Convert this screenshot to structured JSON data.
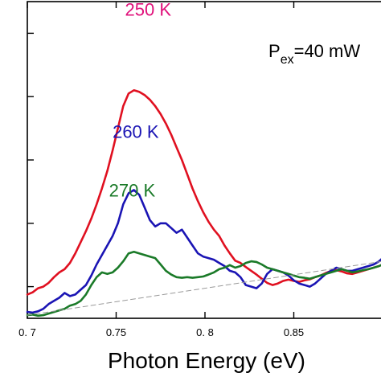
{
  "chart_data": {
    "type": "line",
    "xlabel": "Photon Energy (eV)",
    "xlim": [
      0.7,
      0.9
    ],
    "ylim": [
      0,
      1
    ],
    "xticks": [
      {
        "value": 0.7,
        "label": "0. 7"
      },
      {
        "value": 0.75,
        "label": "0.75"
      },
      {
        "value": 0.8,
        "label": "0. 8"
      },
      {
        "value": 0.85,
        "label": "0.85"
      }
    ],
    "yticks": [
      0.1,
      0.3,
      0.5,
      0.7,
      0.9
    ],
    "annotation": {
      "text_main": "P",
      "text_sub": "ex",
      "text_rest": "=40 mW"
    },
    "series": [
      {
        "name": "250 K",
        "color": "#e01020",
        "label_color": "#e0107a",
        "label_pos": [
          0.755,
          0.955
        ],
        "x": [
          0.7,
          0.703,
          0.706,
          0.709,
          0.712,
          0.715,
          0.718,
          0.721,
          0.724,
          0.727,
          0.73,
          0.733,
          0.736,
          0.739,
          0.742,
          0.745,
          0.748,
          0.751,
          0.754,
          0.757,
          0.76,
          0.763,
          0.766,
          0.769,
          0.772,
          0.775,
          0.778,
          0.781,
          0.784,
          0.787,
          0.79,
          0.793,
          0.796,
          0.799,
          0.802,
          0.805,
          0.808,
          0.811,
          0.814,
          0.817,
          0.82,
          0.823,
          0.826,
          0.829,
          0.832,
          0.835,
          0.838,
          0.841,
          0.844,
          0.847,
          0.85,
          0.853,
          0.856,
          0.859,
          0.862,
          0.865,
          0.868,
          0.871,
          0.874,
          0.877,
          0.88,
          0.883,
          0.886,
          0.889,
          0.892,
          0.895,
          0.898,
          0.9
        ],
        "y": [
          0.075,
          0.082,
          0.095,
          0.1,
          0.112,
          0.13,
          0.145,
          0.155,
          0.175,
          0.205,
          0.24,
          0.275,
          0.315,
          0.36,
          0.41,
          0.465,
          0.53,
          0.6,
          0.67,
          0.71,
          0.72,
          0.715,
          0.705,
          0.69,
          0.67,
          0.645,
          0.615,
          0.58,
          0.54,
          0.5,
          0.455,
          0.41,
          0.37,
          0.335,
          0.305,
          0.28,
          0.26,
          0.23,
          0.205,
          0.182,
          0.175,
          0.162,
          0.15,
          0.138,
          0.125,
          0.112,
          0.105,
          0.11,
          0.118,
          0.122,
          0.118,
          0.115,
          0.12,
          0.123,
          0.13,
          0.135,
          0.143,
          0.15,
          0.152,
          0.148,
          0.142,
          0.14,
          0.145,
          0.15,
          0.155,
          0.16,
          0.165,
          0.17
        ]
      },
      {
        "name": "260 K",
        "color": "#1a14b4",
        "label_color": "#1a14b4",
        "label_pos": [
          0.748,
          0.57
        ],
        "x": [
          0.7,
          0.703,
          0.706,
          0.709,
          0.712,
          0.715,
          0.718,
          0.721,
          0.724,
          0.727,
          0.73,
          0.733,
          0.736,
          0.739,
          0.742,
          0.745,
          0.748,
          0.751,
          0.754,
          0.757,
          0.76,
          0.763,
          0.766,
          0.769,
          0.772,
          0.775,
          0.778,
          0.781,
          0.784,
          0.787,
          0.79,
          0.793,
          0.796,
          0.799,
          0.802,
          0.805,
          0.808,
          0.811,
          0.814,
          0.817,
          0.82,
          0.823,
          0.826,
          0.829,
          0.832,
          0.835,
          0.838,
          0.841,
          0.844,
          0.847,
          0.85,
          0.853,
          0.856,
          0.859,
          0.862,
          0.865,
          0.868,
          0.871,
          0.874,
          0.877,
          0.88,
          0.883,
          0.886,
          0.889,
          0.892,
          0.895,
          0.898,
          0.9
        ],
        "y": [
          0.02,
          0.018,
          0.022,
          0.03,
          0.045,
          0.055,
          0.065,
          0.08,
          0.07,
          0.075,
          0.09,
          0.105,
          0.135,
          0.17,
          0.2,
          0.23,
          0.26,
          0.3,
          0.36,
          0.395,
          0.405,
          0.39,
          0.35,
          0.31,
          0.29,
          0.3,
          0.3,
          0.285,
          0.27,
          0.28,
          0.255,
          0.23,
          0.205,
          0.195,
          0.19,
          0.185,
          0.175,
          0.165,
          0.15,
          0.145,
          0.13,
          0.105,
          0.1,
          0.095,
          0.11,
          0.14,
          0.155,
          0.15,
          0.145,
          0.135,
          0.12,
          0.11,
          0.105,
          0.1,
          0.11,
          0.125,
          0.14,
          0.15,
          0.16,
          0.155,
          0.15,
          0.15,
          0.155,
          0.16,
          0.165,
          0.17,
          0.18,
          0.19
        ]
      },
      {
        "name": "270 K",
        "color": "#1a7a28",
        "label_color": "#1a7a28",
        "label_pos": [
          0.746,
          0.385
        ],
        "x": [
          0.7,
          0.703,
          0.706,
          0.709,
          0.712,
          0.715,
          0.718,
          0.721,
          0.724,
          0.727,
          0.73,
          0.733,
          0.736,
          0.739,
          0.742,
          0.745,
          0.748,
          0.751,
          0.754,
          0.757,
          0.76,
          0.763,
          0.766,
          0.769,
          0.772,
          0.775,
          0.778,
          0.781,
          0.784,
          0.787,
          0.79,
          0.793,
          0.796,
          0.799,
          0.802,
          0.805,
          0.808,
          0.811,
          0.814,
          0.817,
          0.82,
          0.823,
          0.826,
          0.829,
          0.832,
          0.835,
          0.838,
          0.841,
          0.844,
          0.847,
          0.85,
          0.853,
          0.856,
          0.859,
          0.862,
          0.865,
          0.868,
          0.871,
          0.874,
          0.877,
          0.88,
          0.883,
          0.886,
          0.889,
          0.892,
          0.895,
          0.898,
          0.9
        ],
        "y": [
          0.01,
          0.012,
          0.008,
          0.01,
          0.015,
          0.02,
          0.025,
          0.03,
          0.04,
          0.045,
          0.055,
          0.075,
          0.105,
          0.13,
          0.145,
          0.14,
          0.145,
          0.16,
          0.18,
          0.205,
          0.21,
          0.205,
          0.2,
          0.195,
          0.19,
          0.17,
          0.15,
          0.138,
          0.13,
          0.128,
          0.13,
          0.128,
          0.13,
          0.132,
          0.138,
          0.145,
          0.155,
          0.16,
          0.168,
          0.16,
          0.165,
          0.175,
          0.18,
          0.178,
          0.17,
          0.16,
          0.155,
          0.15,
          0.145,
          0.14,
          0.135,
          0.13,
          0.128,
          0.125,
          0.13,
          0.135,
          0.14,
          0.145,
          0.15,
          0.155,
          0.15,
          0.145,
          0.148,
          0.152,
          0.155,
          0.16,
          0.165,
          0.17
        ]
      },
      {
        "name": "",
        "style": "dashed",
        "color": "#9a9a9a",
        "x": [
          0.7,
          0.9
        ],
        "y": [
          0.01,
          0.18
        ]
      }
    ]
  }
}
